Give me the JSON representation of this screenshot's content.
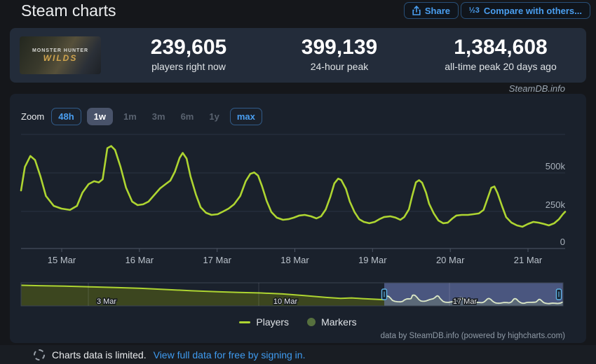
{
  "header": {
    "title": "Steam charts",
    "share_label": "Share",
    "compare_label": "Compare with others...",
    "compare_icon_glyph": "½3"
  },
  "stats": {
    "game_title_line1": "MONSTER HUNTER",
    "game_title_line2": "WILDS",
    "items": [
      {
        "value": "239,605",
        "label": "players right now"
      },
      {
        "value": "399,139",
        "label": "24-hour peak"
      },
      {
        "value": "1,384,608",
        "label": "all-time peak 20 days ago"
      }
    ]
  },
  "watermark": "SteamDB.info",
  "toolbar": {
    "zoom_label": "Zoom",
    "ranges": [
      {
        "label": "48h",
        "state": "outlined"
      },
      {
        "label": "1w",
        "state": "selected"
      },
      {
        "label": "1m",
        "state": "plain"
      },
      {
        "label": "3m",
        "state": "plain"
      },
      {
        "label": "6m",
        "state": "plain"
      },
      {
        "label": "1y",
        "state": "plain"
      },
      {
        "label": "max",
        "state": "outlined"
      }
    ]
  },
  "chart_data": {
    "type": "line",
    "series_name": "Players",
    "unit": "thousands of concurrent players",
    "colors": {
      "line": "#aed531",
      "nav_fill": "#3c461f",
      "nav_selection": "rgba(122,140,210,0.5)",
      "nav_line_selected": "#dde9c8",
      "grid": "#2b3442",
      "axis": "#3d4654",
      "handle_border": "#5fb3e4"
    },
    "x_axis": {
      "tick_labels": [
        "15 Mar",
        "16 Mar",
        "17 Mar",
        "18 Mar",
        "19 Mar",
        "20 Mar",
        "21 Mar"
      ]
    },
    "y_axis": {
      "tick_labels": [
        "500k",
        "250k",
        "0"
      ],
      "ylim_k": [
        0,
        755
      ],
      "gridlines_k": [
        755,
        500,
        250,
        0
      ]
    },
    "points_k": [
      [
        0,
        384
      ],
      [
        0.05,
        540
      ],
      [
        0.12,
        612
      ],
      [
        0.18,
        585
      ],
      [
        0.25,
        477
      ],
      [
        0.32,
        347
      ],
      [
        0.42,
        282
      ],
      [
        0.52,
        264
      ],
      [
        0.63,
        255
      ],
      [
        0.72,
        282
      ],
      [
        0.79,
        370
      ],
      [
        0.87,
        426
      ],
      [
        0.94,
        445
      ],
      [
        1.0,
        437
      ],
      [
        1.05,
        458
      ],
      [
        1.11,
        664
      ],
      [
        1.16,
        678
      ],
      [
        1.21,
        652
      ],
      [
        1.28,
        540
      ],
      [
        1.35,
        403
      ],
      [
        1.43,
        310
      ],
      [
        1.5,
        287
      ],
      [
        1.57,
        292
      ],
      [
        1.64,
        310
      ],
      [
        1.71,
        352
      ],
      [
        1.79,
        398
      ],
      [
        1.86,
        426
      ],
      [
        1.92,
        449
      ],
      [
        1.98,
        509
      ],
      [
        2.04,
        600
      ],
      [
        2.08,
        632
      ],
      [
        2.13,
        595
      ],
      [
        2.18,
        477
      ],
      [
        2.25,
        357
      ],
      [
        2.31,
        273
      ],
      [
        2.38,
        236
      ],
      [
        2.45,
        222
      ],
      [
        2.53,
        227
      ],
      [
        2.6,
        245
      ],
      [
        2.67,
        264
      ],
      [
        2.74,
        292
      ],
      [
        2.82,
        347
      ],
      [
        2.89,
        445
      ],
      [
        2.95,
        494
      ],
      [
        3.0,
        503
      ],
      [
        3.05,
        482
      ],
      [
        3.1,
        412
      ],
      [
        3.16,
        315
      ],
      [
        3.22,
        241
      ],
      [
        3.29,
        204
      ],
      [
        3.37,
        190
      ],
      [
        3.44,
        194
      ],
      [
        3.51,
        204
      ],
      [
        3.58,
        218
      ],
      [
        3.65,
        222
      ],
      [
        3.73,
        213
      ],
      [
        3.8,
        199
      ],
      [
        3.86,
        213
      ],
      [
        3.92,
        259
      ],
      [
        3.98,
        343
      ],
      [
        4.03,
        430
      ],
      [
        4.08,
        462
      ],
      [
        4.12,
        453
      ],
      [
        4.18,
        394
      ],
      [
        4.23,
        310
      ],
      [
        4.29,
        241
      ],
      [
        4.35,
        194
      ],
      [
        4.41,
        176
      ],
      [
        4.48,
        167
      ],
      [
        4.55,
        176
      ],
      [
        4.61,
        194
      ],
      [
        4.67,
        208
      ],
      [
        4.75,
        213
      ],
      [
        4.82,
        204
      ],
      [
        4.88,
        190
      ],
      [
        4.93,
        208
      ],
      [
        4.99,
        259
      ],
      [
        5.03,
        343
      ],
      [
        5.08,
        438
      ],
      [
        5.12,
        452
      ],
      [
        5.16,
        435
      ],
      [
        5.21,
        370
      ],
      [
        5.25,
        296
      ],
      [
        5.31,
        232
      ],
      [
        5.37,
        185
      ],
      [
        5.43,
        167
      ],
      [
        5.49,
        171
      ],
      [
        5.55,
        199
      ],
      [
        5.6,
        218
      ],
      [
        5.67,
        222
      ],
      [
        5.75,
        222
      ],
      [
        5.82,
        227
      ],
      [
        5.89,
        232
      ],
      [
        5.95,
        255
      ],
      [
        6.0,
        329
      ],
      [
        6.05,
        402
      ],
      [
        6.09,
        410
      ],
      [
        6.13,
        366
      ],
      [
        6.19,
        278
      ],
      [
        6.24,
        208
      ],
      [
        6.31,
        171
      ],
      [
        6.38,
        153
      ],
      [
        6.45,
        144
      ],
      [
        6.52,
        162
      ],
      [
        6.59,
        176
      ],
      [
        6.66,
        171
      ],
      [
        6.73,
        162
      ],
      [
        6.79,
        153
      ],
      [
        6.86,
        167
      ],
      [
        6.92,
        194
      ],
      [
        6.97,
        227
      ],
      [
        7.0,
        243
      ]
    ],
    "navigator": {
      "labels": [
        "3 Mar",
        "10 Mar",
        "17 Mar"
      ],
      "history_points_k": [
        [
          0,
          1290
        ],
        [
          0.05,
          1262
        ],
        [
          0.12,
          1232
        ],
        [
          0.2,
          1185
        ],
        [
          0.26,
          1150
        ],
        [
          0.33,
          1096
        ],
        [
          0.4,
          1020
        ],
        [
          0.47,
          942
        ],
        [
          0.54,
          880
        ],
        [
          0.6,
          840
        ],
        [
          0.66,
          806
        ],
        [
          0.72,
          748
        ],
        [
          0.78,
          640
        ],
        [
          0.84,
          530
        ],
        [
          0.88,
          468
        ],
        [
          0.91,
          498
        ],
        [
          0.94,
          452
        ],
        [
          0.97,
          420
        ],
        [
          1,
          388
        ]
      ],
      "selection_range_frac": [
        0.67,
        1.0
      ]
    }
  },
  "legend": [
    {
      "label": "Players",
      "swatch": "line"
    },
    {
      "label": "Markers",
      "swatch": "circle"
    }
  ],
  "attribution": "data by SteamDB.info (powered by highcharts.com)",
  "footer": {
    "text": "Charts data is limited.",
    "link": "View full data for free by signing in."
  }
}
